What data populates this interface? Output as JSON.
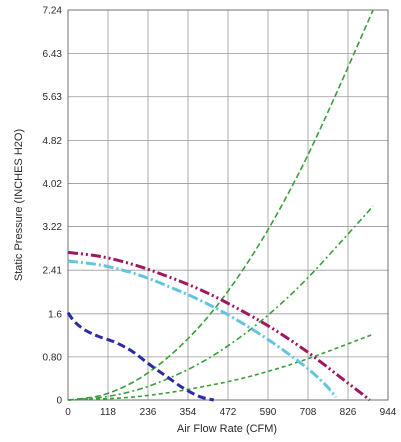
{
  "chart_data": {
    "type": "line",
    "xlabel": "Air Flow Rate (CFM)",
    "ylabel": "Static Pressure (INCHES H2O)",
    "xlim": [
      0,
      944
    ],
    "ylim": [
      0,
      7.24
    ],
    "x_ticks": [
      "0",
      "118",
      "236",
      "354",
      "472",
      "590",
      "708",
      "826",
      "944"
    ],
    "y_ticks": [
      "0",
      "0.80",
      "1.6",
      "2.41",
      "3.22",
      "4.02",
      "4.82",
      "5.63",
      "6.43",
      "7.24"
    ],
    "grid": true,
    "legend": "none",
    "fan_curves": [
      {
        "color": "#2b2ba8",
        "dash": "8 4",
        "points": [
          [
            0,
            1.62
          ],
          [
            20,
            1.45
          ],
          [
            50,
            1.3
          ],
          [
            90,
            1.18
          ],
          [
            140,
            1.07
          ],
          [
            190,
            0.9
          ],
          [
            240,
            0.66
          ],
          [
            290,
            0.44
          ],
          [
            340,
            0.22
          ],
          [
            390,
            0.06
          ],
          [
            430,
            0.0
          ]
        ]
      },
      {
        "color": "#64c4df",
        "dash": "10 3 2 3",
        "points": [
          [
            0,
            2.58
          ],
          [
            100,
            2.5
          ],
          [
            200,
            2.34
          ],
          [
            300,
            2.1
          ],
          [
            400,
            1.82
          ],
          [
            500,
            1.48
          ],
          [
            600,
            1.08
          ],
          [
            700,
            0.62
          ],
          [
            760,
            0.28
          ],
          [
            790,
            0.05
          ]
        ]
      },
      {
        "color": "#a0175e",
        "dash": "10 3 2 3 2 3",
        "points": [
          [
            0,
            2.74
          ],
          [
            100,
            2.66
          ],
          [
            200,
            2.5
          ],
          [
            300,
            2.28
          ],
          [
            400,
            2.02
          ],
          [
            500,
            1.7
          ],
          [
            600,
            1.34
          ],
          [
            700,
            0.92
          ],
          [
            800,
            0.44
          ],
          [
            870,
            0.1
          ],
          [
            890,
            0.0
          ]
        ]
      }
    ],
    "system_curves": [
      {
        "color": "#3a9e3a",
        "dash": "6 3",
        "points": [
          [
            0,
            0.0
          ],
          [
            100,
            0.09
          ],
          [
            200,
            0.36
          ],
          [
            300,
            0.82
          ],
          [
            400,
            1.45
          ],
          [
            500,
            2.27
          ],
          [
            600,
            3.27
          ],
          [
            700,
            4.45
          ],
          [
            800,
            5.81
          ],
          [
            900,
            7.24
          ]
        ]
      },
      {
        "color": "#3a9e3a",
        "dash": "6 3 2 3",
        "points": [
          [
            0,
            0.0
          ],
          [
            100,
            0.05
          ],
          [
            200,
            0.18
          ],
          [
            300,
            0.41
          ],
          [
            400,
            0.72
          ],
          [
            500,
            1.13
          ],
          [
            600,
            1.63
          ],
          [
            700,
            2.22
          ],
          [
            800,
            2.9
          ],
          [
            900,
            3.6
          ]
        ]
      },
      {
        "color": "#3a9e3a",
        "dash": "4 3",
        "points": [
          [
            0,
            0.0
          ],
          [
            100,
            0.02
          ],
          [
            200,
            0.06
          ],
          [
            300,
            0.14
          ],
          [
            400,
            0.25
          ],
          [
            500,
            0.38
          ],
          [
            600,
            0.55
          ],
          [
            700,
            0.75
          ],
          [
            800,
            0.98
          ],
          [
            900,
            1.22
          ]
        ]
      }
    ]
  }
}
